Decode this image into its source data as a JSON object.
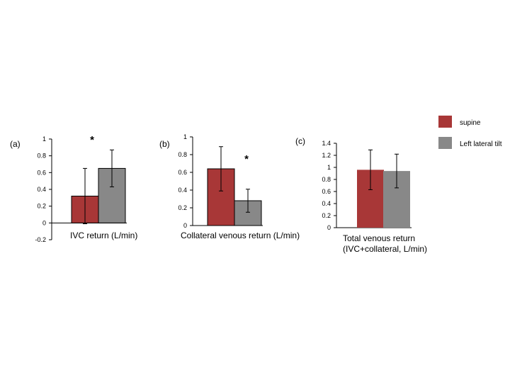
{
  "legend": [
    {
      "name": "supine",
      "color": "#a83737"
    },
    {
      "name": "Left lateral tilt",
      "color": "#888888"
    }
  ],
  "chart_data": [
    {
      "type": "bar",
      "panel": "(a)",
      "xlabel": [
        "IVC return (L/min)"
      ],
      "ylim": [
        -0.2,
        1
      ],
      "yticks": [
        "-0.2",
        "0",
        "0.2",
        "0.4",
        "0.6",
        "0.8",
        "1"
      ],
      "series": [
        {
          "name": "supine",
          "value": 0.32,
          "error": 0.33,
          "color": "#a83737",
          "outline": true
        },
        {
          "name": "Left lateral tilt",
          "value": 0.65,
          "error": 0.22,
          "color": "#888888",
          "outline": true
        }
      ],
      "annotation": "*"
    },
    {
      "type": "bar",
      "panel": "(b)",
      "xlabel": [
        "Collateral venous return (L/min)"
      ],
      "ylim": [
        0,
        1
      ],
      "yticks": [
        "0",
        "0.2",
        "0.4",
        "0.6",
        "0.8",
        "1"
      ],
      "series": [
        {
          "name": "supine",
          "value": 0.64,
          "error": 0.25,
          "color": "#a83737",
          "outline": true
        },
        {
          "name": "Left lateral tilt",
          "value": 0.28,
          "error": 0.13,
          "color": "#888888",
          "outline": true
        }
      ],
      "annotation": "*"
    },
    {
      "type": "bar",
      "panel": "(c)",
      "xlabel": [
        "Total venous return",
        "(IVC+collateral, L/min)"
      ],
      "ylim": [
        0,
        1.4
      ],
      "yticks": [
        "0",
        "0.2",
        "0.4",
        "0.6",
        "0.8",
        "1",
        "1.2",
        "1.4"
      ],
      "series": [
        {
          "name": "supine",
          "value": 0.96,
          "error": 0.33,
          "color": "#a83737",
          "outline": false
        },
        {
          "name": "Left lateral tilt",
          "value": 0.94,
          "error": 0.28,
          "color": "#888888",
          "outline": false
        }
      ],
      "annotation": ""
    }
  ]
}
